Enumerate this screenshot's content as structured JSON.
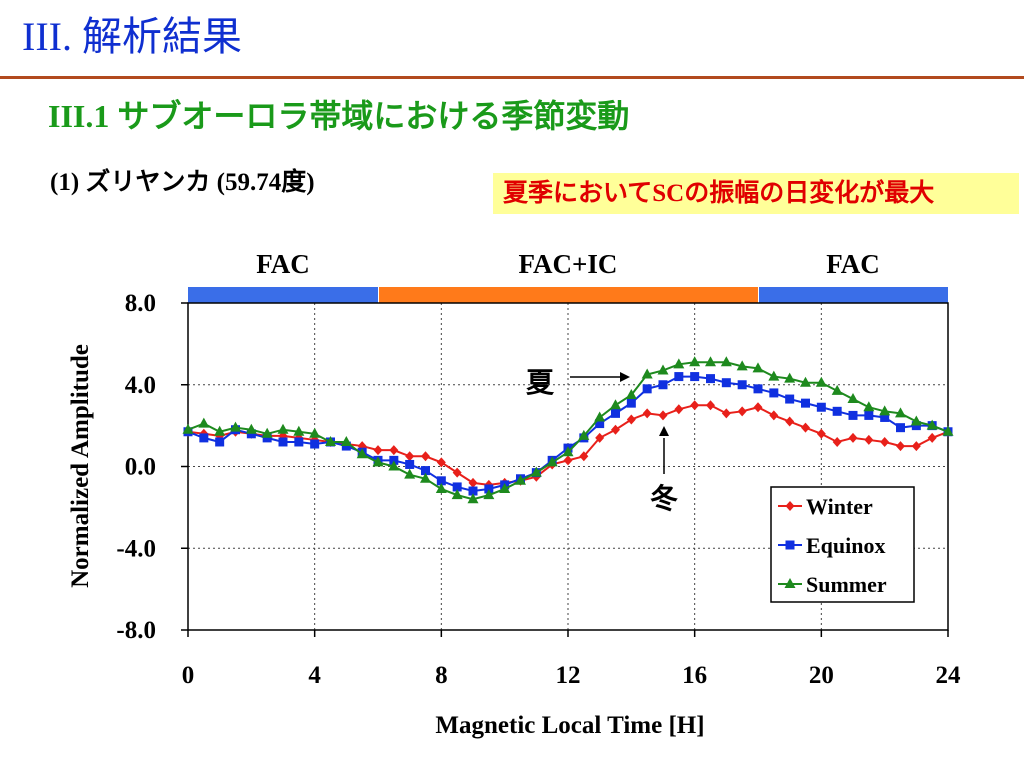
{
  "slide": {
    "title": "III. 解析結果",
    "section_title": "III.1 サブオーロラ帯域における季節変動",
    "station_label": "(1) ズリヤンカ (59.74度)",
    "callout": "夏季においてSCの振幅の日変化が最大"
  },
  "colors": {
    "title": "#0f2fd0",
    "rule": "#b24a1e",
    "section": "#1a9a1a",
    "callout_bg": "#ffff99",
    "callout_text": "#e00000",
    "fac_band": "#3a6ee8",
    "fac_ic_band": "#ff7a1a"
  },
  "chart_data": {
    "type": "line",
    "xlabel": "Magnetic Local Time [H]",
    "ylabel": "Normalized Amplitude",
    "xlim": [
      0,
      24
    ],
    "ylim": [
      -8,
      8
    ],
    "xticks": [
      0,
      4,
      8,
      12,
      16,
      20,
      24
    ],
    "yticks": [
      8,
      4,
      0,
      -4,
      -8
    ],
    "ytick_labels": [
      "8.0",
      "4.0",
      "0.0",
      "-4.0",
      "-8.0"
    ],
    "grid": true,
    "legend_position": "bottom-right",
    "regions": [
      {
        "label": "FAC",
        "from": 0,
        "to": 6,
        "color": "#3a6ee8"
      },
      {
        "label": "FAC+IC",
        "from": 6,
        "to": 18,
        "color": "#ff7a1a"
      },
      {
        "label": "FAC",
        "from": 18,
        "to": 24,
        "color": "#3a6ee8"
      }
    ],
    "annotations": [
      {
        "text": "夏",
        "series": "Summer"
      },
      {
        "text": "冬",
        "series": "Winter"
      }
    ],
    "series": [
      {
        "name": "Winter",
        "color": "#e8201a",
        "marker": "diamond",
        "points": [
          [
            0,
            1.7
          ],
          [
            0.5,
            1.6
          ],
          [
            1,
            1.5
          ],
          [
            1.5,
            1.7
          ],
          [
            2,
            1.6
          ],
          [
            2.5,
            1.5
          ],
          [
            3,
            1.5
          ],
          [
            3.5,
            1.4
          ],
          [
            4,
            1.3
          ],
          [
            4.5,
            1.2
          ],
          [
            5,
            1.1
          ],
          [
            5.5,
            1.0
          ],
          [
            6,
            0.8
          ],
          [
            6.5,
            0.8
          ],
          [
            7,
            0.5
          ],
          [
            7.5,
            0.5
          ],
          [
            8,
            0.2
          ],
          [
            8.5,
            -0.3
          ],
          [
            9,
            -0.8
          ],
          [
            9.5,
            -0.9
          ],
          [
            10,
            -0.8
          ],
          [
            10.5,
            -0.7
          ],
          [
            11,
            -0.5
          ],
          [
            11.5,
            0.1
          ],
          [
            12,
            0.3
          ],
          [
            12.5,
            0.5
          ],
          [
            13,
            1.4
          ],
          [
            13.5,
            1.8
          ],
          [
            14,
            2.3
          ],
          [
            14.5,
            2.6
          ],
          [
            15,
            2.5
          ],
          [
            15.5,
            2.8
          ],
          [
            16,
            3.0
          ],
          [
            16.5,
            3.0
          ],
          [
            17,
            2.6
          ],
          [
            17.5,
            2.7
          ],
          [
            18,
            2.9
          ],
          [
            18.5,
            2.5
          ],
          [
            19,
            2.2
          ],
          [
            19.5,
            1.9
          ],
          [
            20,
            1.6
          ],
          [
            20.5,
            1.2
          ],
          [
            21,
            1.4
          ],
          [
            21.5,
            1.3
          ],
          [
            22,
            1.2
          ],
          [
            22.5,
            1.0
          ],
          [
            23,
            1.0
          ],
          [
            23.5,
            1.4
          ],
          [
            24,
            1.7
          ]
        ]
      },
      {
        "name": "Equinox",
        "color": "#1030e0",
        "marker": "square",
        "points": [
          [
            0,
            1.7
          ],
          [
            0.5,
            1.4
          ],
          [
            1,
            1.2
          ],
          [
            1.5,
            1.8
          ],
          [
            2,
            1.6
          ],
          [
            2.5,
            1.4
          ],
          [
            3,
            1.2
          ],
          [
            3.5,
            1.2
          ],
          [
            4,
            1.1
          ],
          [
            4.5,
            1.2
          ],
          [
            5,
            1.0
          ],
          [
            5.5,
            0.7
          ],
          [
            6,
            0.3
          ],
          [
            6.5,
            0.3
          ],
          [
            7,
            0.1
          ],
          [
            7.5,
            -0.2
          ],
          [
            8,
            -0.7
          ],
          [
            8.5,
            -1.0
          ],
          [
            9,
            -1.2
          ],
          [
            9.5,
            -1.1
          ],
          [
            10,
            -0.9
          ],
          [
            10.5,
            -0.6
          ],
          [
            11,
            -0.3
          ],
          [
            11.5,
            0.3
          ],
          [
            12,
            0.9
          ],
          [
            12.5,
            1.4
          ],
          [
            13,
            2.1
          ],
          [
            13.5,
            2.6
          ],
          [
            14,
            3.1
          ],
          [
            14.5,
            3.8
          ],
          [
            15,
            4.0
          ],
          [
            15.5,
            4.4
          ],
          [
            16,
            4.4
          ],
          [
            16.5,
            4.3
          ],
          [
            17,
            4.1
          ],
          [
            17.5,
            4.0
          ],
          [
            18,
            3.8
          ],
          [
            18.5,
            3.6
          ],
          [
            19,
            3.3
          ],
          [
            19.5,
            3.1
          ],
          [
            20,
            2.9
          ],
          [
            20.5,
            2.7
          ],
          [
            21,
            2.5
          ],
          [
            21.5,
            2.5
          ],
          [
            22,
            2.4
          ],
          [
            22.5,
            1.9
          ],
          [
            23,
            2.0
          ],
          [
            23.5,
            2.0
          ],
          [
            24,
            1.7
          ]
        ]
      },
      {
        "name": "Summer",
        "color": "#1e8a1e",
        "marker": "triangle",
        "points": [
          [
            0,
            1.8
          ],
          [
            0.5,
            2.1
          ],
          [
            1,
            1.7
          ],
          [
            1.5,
            1.9
          ],
          [
            2,
            1.8
          ],
          [
            2.5,
            1.6
          ],
          [
            3,
            1.8
          ],
          [
            3.5,
            1.7
          ],
          [
            4,
            1.6
          ],
          [
            4.5,
            1.2
          ],
          [
            5,
            1.2
          ],
          [
            5.5,
            0.6
          ],
          [
            6,
            0.2
          ],
          [
            6.5,
            0.0
          ],
          [
            7,
            -0.4
          ],
          [
            7.5,
            -0.6
          ],
          [
            8,
            -1.1
          ],
          [
            8.5,
            -1.4
          ],
          [
            9,
            -1.6
          ],
          [
            9.5,
            -1.4
          ],
          [
            10,
            -1.1
          ],
          [
            10.5,
            -0.7
          ],
          [
            11,
            -0.3
          ],
          [
            11.5,
            0.2
          ],
          [
            12,
            0.7
          ],
          [
            12.5,
            1.5
          ],
          [
            13,
            2.4
          ],
          [
            13.5,
            3.0
          ],
          [
            14,
            3.5
          ],
          [
            14.5,
            4.5
          ],
          [
            15,
            4.7
          ],
          [
            15.5,
            5.0
          ],
          [
            16,
            5.1
          ],
          [
            16.5,
            5.1
          ],
          [
            17,
            5.1
          ],
          [
            17.5,
            4.9
          ],
          [
            18,
            4.8
          ],
          [
            18.5,
            4.4
          ],
          [
            19,
            4.3
          ],
          [
            19.5,
            4.1
          ],
          [
            20,
            4.1
          ],
          [
            20.5,
            3.7
          ],
          [
            21,
            3.3
          ],
          [
            21.5,
            2.9
          ],
          [
            22,
            2.7
          ],
          [
            22.5,
            2.6
          ],
          [
            23,
            2.2
          ],
          [
            23.5,
            2.0
          ],
          [
            24,
            1.7
          ]
        ]
      }
    ]
  }
}
